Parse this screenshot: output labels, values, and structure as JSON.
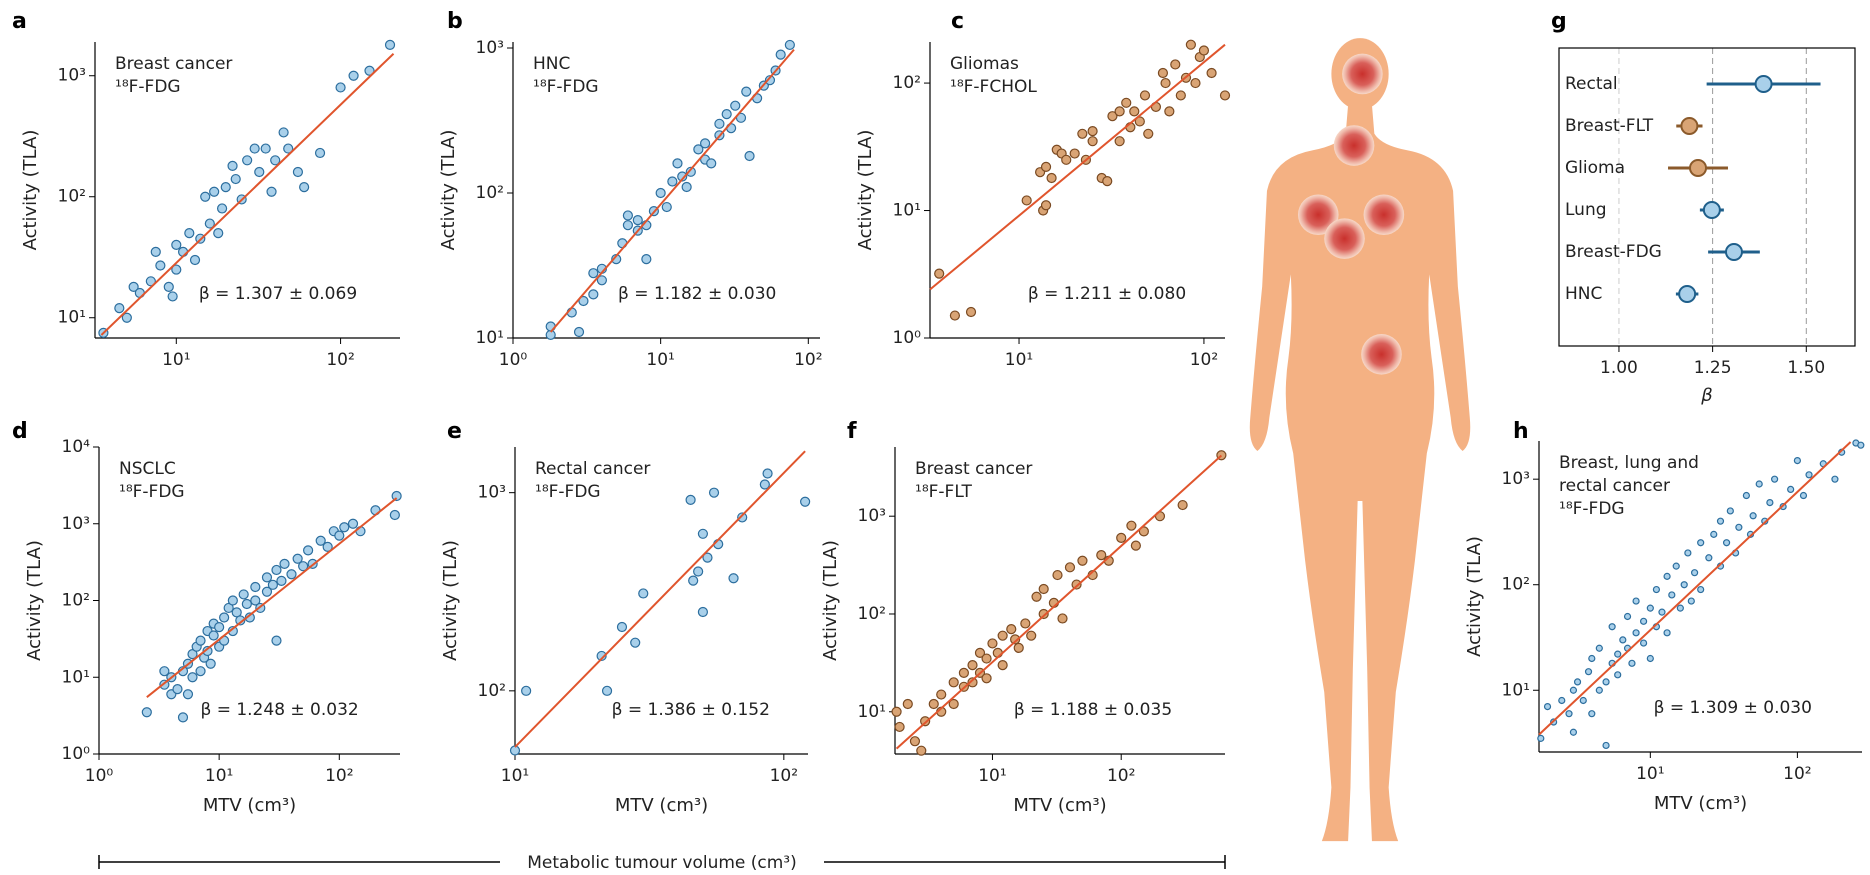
{
  "chart_data": [
    {
      "type": "scatter",
      "panel_label": "a",
      "annotation": [
        "Breast cancer",
        "¹⁸F-FDG"
      ],
      "beta_label": "β = 1.307 ± 0.069",
      "ylabel": "Activity (TLA)",
      "xscale": "log",
      "yscale": "log",
      "xlim": [
        3.2,
        230
      ],
      "ylim": [
        6.8,
        1900
      ],
      "xticks": [
        {
          "value": 10,
          "label": "10¹"
        },
        {
          "value": 100,
          "label": "10²"
        }
      ],
      "yticks": [
        {
          "value": 10,
          "label": "10¹"
        },
        {
          "value": 100,
          "label": "10²"
        },
        {
          "value": 1000,
          "label": "10³"
        }
      ],
      "color": "#a9d0ea",
      "edge_color": "#2c6e9e",
      "x": [
        3.6,
        4.5,
        5,
        5.5,
        6,
        7,
        7.5,
        8,
        9,
        9.5,
        10,
        10,
        11,
        12,
        13,
        14,
        15,
        16,
        17,
        18,
        19,
        20,
        22,
        23,
        25,
        27,
        30,
        32,
        35,
        38,
        40,
        45,
        48,
        55,
        60,
        75,
        100,
        120,
        150,
        200
      ],
      "values": [
        7.5,
        12,
        10,
        18,
        16,
        20,
        35,
        27,
        18,
        15,
        25,
        40,
        35,
        50,
        30,
        45,
        100,
        60,
        110,
        50,
        80,
        120,
        180,
        140,
        95,
        200,
        250,
        160,
        250,
        110,
        200,
        340,
        250,
        160,
        120,
        230,
        800,
        1000,
        1100,
        1800
      ],
      "fit": {
        "color": "#e0552d",
        "x": [
          3.5,
          210
        ],
        "values": [
          7.2,
          1520
        ]
      }
    },
    {
      "type": "scatter",
      "panel_label": "b",
      "annotation": [
        "HNC",
        "¹⁸F-FDG"
      ],
      "beta_label": "β = 1.182 ± 0.030",
      "ylabel": "Activity (TLA)",
      "xscale": "log",
      "yscale": "log",
      "xlim": [
        1,
        120
      ],
      "ylim": [
        10,
        1100
      ],
      "xticks": [
        {
          "value": 1,
          "label": "10⁰"
        },
        {
          "value": 10,
          "label": "10¹"
        },
        {
          "value": 100,
          "label": "10²"
        }
      ],
      "yticks": [
        {
          "value": 10,
          "label": "10¹"
        },
        {
          "value": 100,
          "label": "10²"
        },
        {
          "value": 1000,
          "label": "10³"
        }
      ],
      "color": "#a9d0ea",
      "edge_color": "#2c6e9e",
      "x": [
        1.8,
        1.8,
        2.5,
        2.8,
        3,
        3.5,
        3.5,
        4,
        4,
        5,
        5.5,
        6,
        6,
        7,
        7,
        8,
        8,
        9,
        10,
        11,
        12,
        13,
        14,
        15,
        16,
        18,
        20,
        20,
        22,
        25,
        25,
        28,
        30,
        32,
        35,
        38,
        40,
        45,
        50,
        55,
        60,
        65,
        75
      ],
      "values": [
        10.5,
        12,
        15,
        11,
        18,
        20,
        28,
        30,
        25,
        35,
        45,
        70,
        60,
        65,
        55,
        60,
        35,
        75,
        100,
        80,
        120,
        160,
        130,
        110,
        140,
        200,
        220,
        170,
        160,
        300,
        250,
        350,
        280,
        400,
        330,
        500,
        180,
        450,
        550,
        600,
        700,
        900,
        1050
      ],
      "fit": {
        "color": "#e0552d",
        "x": [
          1.8,
          80
        ],
        "values": [
          11,
          975
        ]
      }
    },
    {
      "type": "scatter",
      "panel_label": "c",
      "annotation": [
        "Gliomas",
        "¹⁸F-FCHOL"
      ],
      "beta_label": "β = 1.211 ± 0.080",
      "ylabel": "Activity (TLA)",
      "xscale": "log",
      "yscale": "log",
      "xlim": [
        3.3,
        130
      ],
      "ylim": [
        1,
        210
      ],
      "xticks": [
        {
          "value": 10,
          "label": "10¹"
        },
        {
          "value": 100,
          "label": "10²"
        }
      ],
      "yticks": [
        {
          "value": 1,
          "label": "10⁰"
        },
        {
          "value": 10,
          "label": "10¹"
        },
        {
          "value": 100,
          "label": "10²"
        }
      ],
      "color": "#d9a475",
      "edge_color": "#7a4a22",
      "x": [
        3.7,
        4.5,
        5.5,
        11,
        13,
        13.5,
        14,
        14,
        15,
        16,
        17,
        18,
        20,
        22,
        23,
        25,
        25,
        28,
        30,
        32,
        35,
        35,
        38,
        40,
        42,
        45,
        48,
        50,
        55,
        60,
        62,
        65,
        70,
        75,
        80,
        85,
        90,
        95,
        100,
        110,
        130
      ],
      "values": [
        3.2,
        1.5,
        1.6,
        12,
        20,
        10,
        11,
        22,
        18,
        30,
        28,
        25,
        28,
        40,
        25,
        35,
        42,
        18,
        17,
        55,
        35,
        60,
        70,
        45,
        60,
        50,
        80,
        40,
        65,
        120,
        100,
        60,
        140,
        80,
        110,
        200,
        100,
        160,
        180,
        120,
        80
      ],
      "fit": {
        "color": "#e0552d",
        "x": [
          3.3,
          130
        ],
        "values": [
          2.4,
          200
        ]
      }
    },
    {
      "type": "scatter",
      "panel_label": "d",
      "annotation": [
        "NSCLC",
        "¹⁸F-FDG"
      ],
      "beta_label": "β = 1.248 ± 0.032",
      "ylabel": "Activity (TLA)",
      "xlabel": "MTV (cm³)",
      "xscale": "log",
      "yscale": "log",
      "xlim": [
        1,
        320
      ],
      "ylim": [
        1,
        10000
      ],
      "xticks": [
        {
          "value": 1,
          "label": "10⁰"
        },
        {
          "value": 10,
          "label": "10¹"
        },
        {
          "value": 100,
          "label": "10²"
        }
      ],
      "yticks": [
        {
          "value": 1,
          "label": "10⁰"
        },
        {
          "value": 10,
          "label": "10¹"
        },
        {
          "value": 100,
          "label": "10²"
        },
        {
          "value": 1000,
          "label": "10³"
        },
        {
          "value": 10000,
          "label": "10⁴"
        }
      ],
      "color": "#a9d0ea",
      "edge_color": "#2c6e9e",
      "x": [
        2.5,
        3.5,
        3.5,
        4,
        4,
        4.5,
        5,
        5,
        5.5,
        5.5,
        6,
        6,
        6.5,
        7,
        7,
        7.5,
        8,
        8,
        8.5,
        9,
        9,
        10,
        10,
        11,
        11,
        12,
        13,
        13,
        14,
        15,
        16,
        17,
        18,
        20,
        20,
        22,
        25,
        25,
        28,
        30,
        30,
        33,
        35,
        40,
        45,
        50,
        55,
        60,
        70,
        80,
        90,
        100,
        110,
        130,
        150,
        200,
        300,
        290
      ],
      "values": [
        3.5,
        8,
        12,
        6,
        10,
        7,
        3,
        12,
        15,
        6,
        10,
        20,
        25,
        12,
        30,
        18,
        22,
        40,
        15,
        35,
        50,
        25,
        45,
        60,
        30,
        80,
        40,
        100,
        70,
        55,
        120,
        90,
        60,
        150,
        100,
        80,
        200,
        130,
        160,
        30,
        250,
        180,
        300,
        220,
        350,
        280,
        450,
        300,
        600,
        500,
        800,
        700,
        900,
        1000,
        800,
        1500,
        2300,
        1300
      ],
      "fit": {
        "color": "#e0552d",
        "x": [
          2.5,
          300
        ],
        "values": [
          5.5,
          2160
        ]
      }
    },
    {
      "type": "scatter",
      "panel_label": "e",
      "annotation": [
        "Rectal cancer",
        "¹⁸F-FDG"
      ],
      "beta_label": "β = 1.386 ± 0.152",
      "ylabel": "Activity (TLA)",
      "xlabel": "MTV (cm³)",
      "xscale": "log",
      "yscale": "log",
      "xlim": [
        10,
        123
      ],
      "ylim": [
        48,
        1700
      ],
      "xticks": [
        {
          "value": 10,
          "label": "10¹"
        },
        {
          "value": 100,
          "label": "10²"
        }
      ],
      "yticks": [
        {
          "value": 100,
          "label": "10²"
        },
        {
          "value": 1000,
          "label": "10³"
        }
      ],
      "color": "#a9d0ea",
      "edge_color": "#2c6e9e",
      "x": [
        10,
        11,
        21,
        22,
        25,
        28,
        30,
        45,
        46,
        48,
        50,
        50,
        52,
        55,
        57,
        65,
        70,
        85,
        87,
        120
      ],
      "values": [
        50,
        100,
        150,
        100,
        210,
        175,
        310,
        920,
        360,
        400,
        250,
        620,
        470,
        1000,
        550,
        370,
        750,
        1100,
        1250,
        900
      ],
      "fit": {
        "color": "#e0552d",
        "x": [
          10,
          120
        ],
        "values": [
          52,
          1620
        ]
      }
    },
    {
      "type": "scatter",
      "panel_label": "f",
      "annotation": [
        "Breast cancer",
        "¹⁸F-FLT"
      ],
      "beta_label": "β = 1.188 ± 0.035",
      "ylabel": "Activity (TLA)",
      "xlabel": "MTV (cm³)",
      "xscale": "log",
      "yscale": "log",
      "xlim": [
        1.75,
        640
      ],
      "ylim": [
        3.7,
        5100
      ],
      "xticks": [
        {
          "value": 10,
          "label": "10¹"
        },
        {
          "value": 100,
          "label": "10²"
        }
      ],
      "yticks": [
        {
          "value": 10,
          "label": "10¹"
        },
        {
          "value": 100,
          "label": "10²"
        },
        {
          "value": 1000,
          "label": "10³"
        }
      ],
      "color": "#d9a475",
      "edge_color": "#7a4a22",
      "x": [
        1.8,
        1.9,
        2.2,
        2.5,
        2.8,
        3,
        3.5,
        4,
        4,
        5,
        5,
        6,
        6,
        7,
        7,
        8,
        8,
        9,
        9,
        10,
        11,
        12,
        12,
        14,
        15,
        16,
        18,
        20,
        22,
        25,
        25,
        30,
        32,
        35,
        40,
        45,
        50,
        60,
        70,
        80,
        100,
        120,
        130,
        150,
        200,
        300,
        600
      ],
      "values": [
        10,
        7,
        12,
        5,
        4,
        8,
        12,
        10,
        15,
        12,
        20,
        18,
        25,
        20,
        30,
        25,
        40,
        35,
        22,
        50,
        40,
        60,
        30,
        70,
        55,
        45,
        80,
        60,
        150,
        100,
        180,
        130,
        250,
        90,
        300,
        200,
        350,
        250,
        400,
        350,
        600,
        800,
        500,
        700,
        1000,
        1300,
        4200
      ],
      "fit": {
        "color": "#e0552d",
        "x": [
          1.8,
          600
        ],
        "values": [
          4.2,
          4170
        ]
      }
    },
    {
      "type": "errorbar",
      "panel_label": "g",
      "xlabel": "β",
      "categories": [
        "Rectal",
        "Breast-FLT",
        "Glioma",
        "Lung",
        "Breast-FDG",
        "HNC"
      ],
      "values": [
        1.386,
        1.188,
        1.211,
        1.248,
        1.307,
        1.182
      ],
      "errors": [
        0.152,
        0.035,
        0.08,
        0.032,
        0.069,
        0.03
      ],
      "colors": [
        "#1f5f8b",
        "#8b5a2b",
        "#8b5a2b",
        "#1f5f8b",
        "#1f5f8b",
        "#1f5f8b"
      ],
      "fill_colors": [
        "#a9d0ea",
        "#d9a475",
        "#d9a475",
        "#a9d0ea",
        "#a9d0ea",
        "#a9d0ea"
      ],
      "xlim": [
        0.84,
        1.63
      ],
      "xticks": [
        {
          "value": 1,
          "label": "1.00"
        },
        1.25,
        {
          "value": 1.5,
          "label": "1.50"
        }
      ],
      "grid": true
    },
    {
      "type": "scatter",
      "panel_label": "h",
      "annotation": [
        "Breast, lung and",
        "rectal cancer",
        "¹⁸F-FDG"
      ],
      "beta_label": "β = 1.309 ± 0.030",
      "ylabel": "Activity (TLA)",
      "xlabel": "MTV (cm³)",
      "xscale": "log",
      "yscale": "log",
      "xlim": [
        1.75,
        275
      ],
      "ylim": [
        2.6,
        2300
      ],
      "xticks": [
        {
          "value": 10,
          "label": "10¹"
        },
        {
          "value": 100,
          "label": "10²"
        }
      ],
      "yticks": [
        {
          "value": 10,
          "label": "10¹"
        },
        {
          "value": 100,
          "label": "10²"
        },
        {
          "value": 1000,
          "label": "10³"
        }
      ],
      "color": "#a9d0ea",
      "edge_color": "#2c6e9e",
      "marker_size": "small",
      "x": [
        1.8,
        2,
        2.2,
        2.5,
        2.8,
        3,
        3,
        3.2,
        3.5,
        3.8,
        4,
        4,
        4.5,
        4.5,
        5,
        5,
        5.5,
        5.5,
        6,
        6,
        6.5,
        7,
        7,
        7.5,
        8,
        8,
        9,
        9,
        10,
        10,
        11,
        11,
        12,
        13,
        13,
        14,
        15,
        16,
        17,
        18,
        19,
        20,
        22,
        22,
        25,
        27,
        30,
        30,
        33,
        35,
        38,
        40,
        45,
        48,
        50,
        55,
        60,
        65,
        70,
        80,
        90,
        100,
        110,
        120,
        150,
        180,
        200,
        250,
        270
      ],
      "values": [
        3.5,
        7,
        5,
        8,
        6,
        10,
        4,
        12,
        8,
        15,
        6,
        20,
        10,
        25,
        12,
        3,
        18,
        40,
        22,
        14,
        30,
        25,
        50,
        18,
        35,
        70,
        28,
        45,
        60,
        20,
        90,
        40,
        55,
        120,
        35,
        80,
        150,
        60,
        100,
        200,
        70,
        130,
        250,
        90,
        180,
        300,
        150,
        400,
        250,
        500,
        200,
        350,
        700,
        300,
        450,
        900,
        400,
        600,
        1000,
        550,
        800,
        1500,
        700,
        1100,
        1400,
        1000,
        1800,
        2200,
        2100
      ],
      "fit": {
        "color": "#e0552d",
        "x": [
          1.75,
          230
        ],
        "values": [
          3.8,
          2250
        ]
      }
    }
  ],
  "shared_xlabel": "Metabolic tumour volume (cm³)"
}
